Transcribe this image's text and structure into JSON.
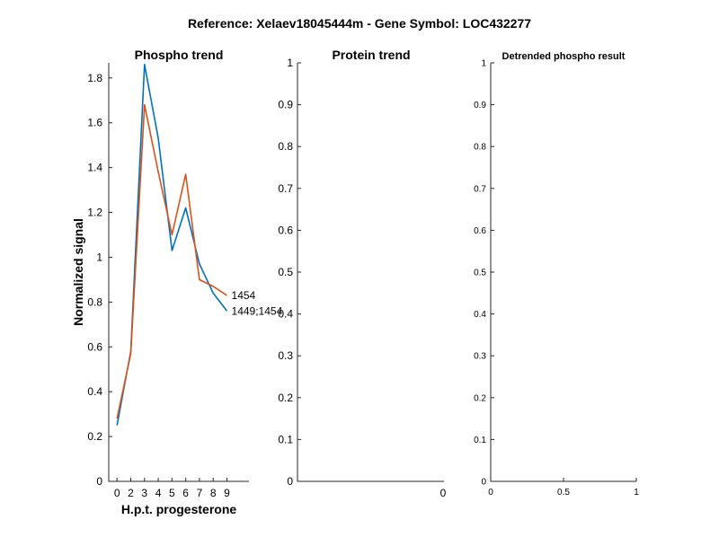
{
  "figure": {
    "suptitle": "Reference:  Xelaev18045444m - Gene Symbol:  LOC432277"
  },
  "chart_data": [
    {
      "type": "line",
      "title": "Phospho trend",
      "xlabel": "H.p.t. progesterone",
      "ylabel": "Normalized signal",
      "xlim": [
        -0.6,
        9.6
      ],
      "ylim": [
        0,
        1.8673
      ],
      "x_ticks": [
        0,
        2,
        3,
        4,
        5,
        6,
        7,
        8,
        9
      ],
      "x_tick_labels": [
        "0",
        "2",
        "3",
        "4",
        "5",
        "6",
        "7",
        "8",
        "9"
      ],
      "y_ticks": [
        0,
        0.2,
        0.4,
        0.6,
        0.8,
        1.0,
        1.2,
        1.4,
        1.6,
        1.8
      ],
      "y_tick_labels": [
        "0",
        "0.2",
        "0.4",
        "0.6",
        "0.8",
        "1",
        "1.2",
        "1.4",
        "1.6",
        "1.8"
      ],
      "grid": false,
      "x": [
        0,
        1,
        2,
        3,
        4,
        5,
        6,
        7,
        8
      ],
      "series": [
        {
          "name": "1449;1454",
          "color": "#0072BD",
          "values": [
            0.25,
            0.58,
            1.86,
            1.53,
            1.03,
            1.22,
            0.97,
            0.84,
            0.76
          ]
        },
        {
          "name": "1454",
          "color": "#D95319",
          "values": [
            0.28,
            0.57,
            1.68,
            1.38,
            1.1,
            1.37,
            0.9,
            0.87,
            0.83
          ]
        }
      ]
    },
    {
      "type": "line",
      "title": "Protein trend",
      "xlabel": "",
      "ylabel": "",
      "ylim": [
        0,
        1
      ],
      "y_ticks": [
        0,
        0.1,
        0.2,
        0.3,
        0.4,
        0.5,
        0.6,
        0.7,
        0.8,
        0.9,
        1
      ],
      "y_tick_labels": [
        "0",
        "0.1",
        "0.2",
        "0.3",
        "0.4",
        "0.5",
        "0.6",
        "0.7",
        "0.8",
        "0.9",
        "1"
      ],
      "x_tick_labels": [
        "0"
      ],
      "grid": false,
      "series": []
    },
    {
      "type": "line",
      "title": "Detrended phospho result",
      "xlabel": "",
      "ylabel": "",
      "xlim": [
        0,
        1
      ],
      "ylim": [
        0,
        1
      ],
      "x_ticks": [
        0,
        0.5,
        1
      ],
      "x_tick_labels": [
        "0",
        "0.5",
        "1"
      ],
      "y_ticks": [
        0,
        0.1,
        0.2,
        0.3,
        0.4,
        0.5,
        0.6,
        0.7,
        0.8,
        0.9,
        1
      ],
      "y_tick_labels": [
        "0",
        "0.1",
        "0.2",
        "0.3",
        "0.4",
        "0.5",
        "0.6",
        "0.7",
        "0.8",
        "0.9",
        "1"
      ],
      "grid": false,
      "series": []
    }
  ]
}
